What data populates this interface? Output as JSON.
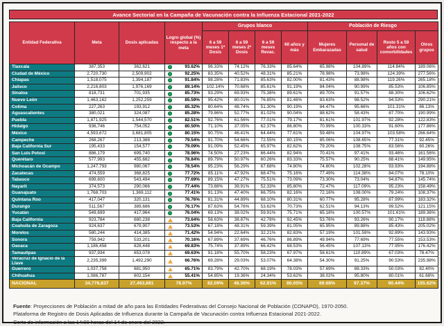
{
  "title": "Avance Sectorial en la Campaña de Vacunación contra la Influenza Estacional 2021-2022",
  "colors": {
    "header_red": "#d13a4a",
    "state_teal": "#0e7b83",
    "national_gold": "#c8a12c",
    "status_ok_green": "#1fa05a",
    "status_warning_amber": "#f0a63c"
  },
  "table": {
    "header": {
      "entidad": "Entidad Federativa",
      "meta": "Meta",
      "dosis": "Dosis aplicadas",
      "logro": "Logro global (%) respecto a la meta",
      "grupos_blanco": "Grupos blanco",
      "poblacion_riesgo": "Población de Riesgo",
      "sub": [
        "6 a 59 meses 1ª Dosis",
        "6 a 59 meses 2ª Dosis",
        "6 a 59 meses Revac.",
        "60 años y más",
        "Mujeres Embarazadas",
        "Personal de salud",
        "Resto 5 a 59 años con comorbilidades",
        "Otros grupos"
      ]
    },
    "status_legend": {
      "green": "meta alcanzada (círculo verde)",
      "yellow": "rezago (triángulo amarillo)"
    },
    "rows": [
      [
        "Tlaxcala",
        "387,353",
        "362,621",
        "93.62%",
        "green",
        "96.33%",
        "74.12%",
        "76.33%",
        "85.64%",
        "65.98%",
        "104.89%",
        "114.84%",
        "189.06%"
      ],
      [
        "Ciudad de México",
        "2,720,730",
        "2,509,902",
        "92.25%",
        "green",
        "83.35%",
        "40.52%",
        "48.31%",
        "85.21%",
        "78.98%",
        "73.98%",
        "124.39%",
        "277.56%"
      ],
      [
        "Chiapas",
        "1,518,075",
        "1,394,187",
        "91.84%",
        "green",
        "98.28%",
        "71.83%",
        "85.63%",
        "82.00%",
        "81.43%",
        "88.98%",
        "119.26%",
        "265.18%"
      ],
      [
        "Jalisco",
        "2,216,803",
        "1,976,169",
        "89.14%",
        "green",
        "102.14%",
        "70.68%",
        "85.61%",
        "91.19%",
        "84.04%",
        "90.99%",
        "85.53%",
        "106.85%"
      ],
      [
        "Sinaloa",
        "818,731",
        "701,935",
        "85.73%",
        "green",
        "93.29%",
        "69.93%",
        "75.38%",
        "89.61%",
        "89.70%",
        "91.57%",
        "88.30%",
        "106.62%"
      ],
      [
        "Nuevo León",
        "1,463,162",
        "1,252,259",
        "85.59%",
        "green",
        "95.42%",
        "80.01%",
        "76.85%",
        "81.46%",
        "83.63%",
        "98.52%",
        "94.53%",
        "290.21%"
      ],
      [
        "Colima",
        "227,263",
        "193,912",
        "85.32%",
        "green",
        "80.64%",
        "48.74%",
        "51.30%",
        "90.19%",
        "84.47%",
        "95.66%",
        "101.31%",
        "86.13%"
      ],
      [
        "Aguascalientes",
        "380,021",
        "324,087",
        "85.28%",
        "green",
        "79.86%",
        "52.77%",
        "81.02%",
        "90.04%",
        "88.62%",
        "58.43%",
        "87.70%",
        "190.99%"
      ],
      [
        "Puebla",
        "1,871,925",
        "1,544,570",
        "82.51%",
        "green",
        "92.76%",
        "61.56%",
        "77.01%",
        "79.17%",
        "81.61%",
        "101.97%",
        "92.28%",
        "122.83%"
      ],
      [
        "Hidalgo",
        "936,746",
        "754,052",
        "80.50%",
        "green",
        "71.10%",
        "37.05%",
        "62.37%",
        "86.80%",
        "70.99%",
        "100.33%",
        "91.60%",
        "177.86%"
      ],
      [
        "México",
        "4,593,672",
        "3,681,805",
        "80.15%",
        "green",
        "90.75%",
        "46.41%",
        "64.44%",
        "77.61%",
        "59.48%",
        "104.97%",
        "103.58%",
        "266.64%"
      ],
      [
        "Campeche",
        "268,267",
        "213,388",
        "79.54%",
        "green",
        "91.70%",
        "54.66%",
        "72.55%",
        "80.15%",
        "85.06%",
        "108.65%",
        "77.31%",
        "92.45%"
      ],
      [
        "Baja California Sur",
        "195,433",
        "154,577",
        "79.09%",
        "green",
        "91.09%",
        "52.45%",
        "65.97%",
        "82.62%",
        "79.20%",
        "108.75%",
        "83.56%",
        "60.26%"
      ],
      [
        "San Luis Potosí",
        "886,179",
        "699,740",
        "78.96%",
        "green",
        "74.50%",
        "27.23%",
        "66.44%",
        "82.94%",
        "70.41%",
        "97.41%",
        "93.46%",
        "161.56%"
      ],
      [
        "Querétaro",
        "577,993",
        "455,682",
        "78.84%",
        "green",
        "89.79%",
        "50.97%",
        "60.26%",
        "83.33%",
        "75.57%",
        "90.25%",
        "88.41%",
        "149.95%"
      ],
      [
        "Michoacán de Ocampo",
        "1,247,793",
        "980,067",
        "78.54%",
        "green",
        "95.23%",
        "56.29%",
        "67.68%",
        "74.80%",
        "74.80%",
        "102.28%",
        "93.93%",
        "194.88%"
      ],
      [
        "Zacatecas",
        "474,559",
        "368,825",
        "77.72%",
        "green",
        "85.11%",
        "47.92%",
        "68.47%",
        "75.16%",
        "77.49%",
        "114.38%",
        "84.07%",
        "78.10%"
      ],
      [
        "Tabasco",
        "699,600",
        "543,494",
        "77.69%",
        "green",
        "89.15%",
        "47.27%",
        "75.51%",
        "73.09%",
        "73.30%",
        "73.04%",
        "94.87%",
        "145.74%"
      ],
      [
        "Nayarit",
        "374,573",
        "290,066",
        "77.44%",
        "green",
        "73.88%",
        "39.91%",
        "52.33%",
        "85.80%",
        "72.47%",
        "117.09%",
        "95.23%",
        "158.49%"
      ],
      [
        "Guanajuato",
        "1,768,703",
        "1,369,112",
        "77.41%",
        "green",
        "91.13%",
        "47.40%",
        "66.75%",
        "82.16%",
        "72.16%",
        "108.00%",
        "79.24%",
        "108.37%"
      ],
      [
        "Quintana Roo",
        "417,047",
        "320,131",
        "76.76%",
        "green",
        "81.31%",
        "44.89%",
        "68.10%",
        "80.31%",
        "60.77%",
        "95.28%",
        "87.99%",
        "183.32%"
      ],
      [
        "Durango",
        "511,567",
        "389,686",
        "76.17%",
        "green",
        "87.63%",
        "54.76%",
        "53.62%",
        "70.73%",
        "62.51%",
        "94.13%",
        "99.52%",
        "121.15%"
      ],
      [
        "Yucatán",
        "549,699",
        "417,964",
        "76.04%",
        "green",
        "69.13%",
        "38.02%",
        "59.91%",
        "75.71%",
        "65.18%",
        "100.57%",
        "101.61%",
        "189.36%"
      ],
      [
        "Baja California",
        "923,784",
        "680,238",
        "73.64%",
        "yellow",
        "58.63%",
        "38.87%",
        "42.78%",
        "92.45%",
        "53.76%",
        "93.26%",
        "90.17%",
        "118.88%"
      ],
      [
        "Coahuila de Zaragoza",
        "924,637",
        "679,907",
        "73.53%",
        "yellow",
        "67.18%",
        "48.31%",
        "59.39%",
        "81.05%",
        "65.95%",
        "89.88%",
        "85.43%",
        "205.02%"
      ],
      [
        "Morelos",
        "580,244",
        "414,385",
        "71.42%",
        "yellow",
        "54.94%",
        "22.64%",
        "32.21%",
        "82.83%",
        "57.19%",
        "101.59%",
        "92.89%",
        "143.93%"
      ],
      [
        "Sonora",
        "759,942",
        "533,201",
        "70.16%",
        "yellow",
        "67.89%",
        "37.69%",
        "46.76%",
        "86.89%",
        "49.94%",
        "77.69%",
        "77.55%",
        "153.53%"
      ],
      [
        "Oaxaca",
        "1,186,458",
        "828,448",
        "69.83%",
        "yellow",
        "75.74%",
        "37.89%",
        "66.42%",
        "68.53%",
        "56.45%",
        "107.13%",
        "77.95%",
        "176.42%"
      ],
      [
        "Tamaulipas",
        "937,934",
        "653,078",
        "69.63%",
        "yellow",
        "91.18%",
        "55.70%",
        "58.23%",
        "67.97%",
        "58.61%",
        "110.89%",
        "67.03%",
        "78.47%"
      ],
      [
        "Veracruz de Ignacio de la Llave",
        "2,235,399",
        "1,492,290",
        "66.76%",
        "yellow",
        "69.28%",
        "29.03%",
        "53.07%",
        "64.38%",
        "54.30%",
        "91.25%",
        "90.53%",
        "235.98%"
      ],
      [
        "Guerrero",
        "1,037,758",
        "681,950",
        "65.71%",
        "yellow",
        "83.79%",
        "42.70%",
        "68.19%",
        "78.03%",
        "57.69%",
        "88.33%",
        "50.03%",
        "82.40%"
      ],
      [
        "Chihuahua",
        "1,086,787",
        "602,154",
        "55.41%",
        "yellow",
        "54.85%",
        "19.36%",
        "24.34%",
        "53.62%",
        "38.02%",
        "95.80%",
        "80.01%",
        "61.68%"
      ]
    ],
    "national": [
      "NACIONAL",
      "34,778,837",
      "27,463,881",
      "78.97%",
      "none",
      "82.09%",
      "48.36%",
      "62.91%",
      "80.05%",
      "69.68%",
      "97.37%",
      "90.44%",
      "155.62%"
    ]
  },
  "footer": {
    "source_label": "Fuente",
    "line1": ": Proyecciones de Población a mitad de año para las Entidades Federativas del Consejo Nacional de Población (CONAPO), 1970-2050.",
    "line2": "Plataforma de Registro de Dosis Aplicadas de Influenza durante la Campaña de Vacunación contra Influenza Estacional 2021-2022.",
    "line3": "Corte de información a las 14:00 horas del 14 de enero del 2022."
  }
}
